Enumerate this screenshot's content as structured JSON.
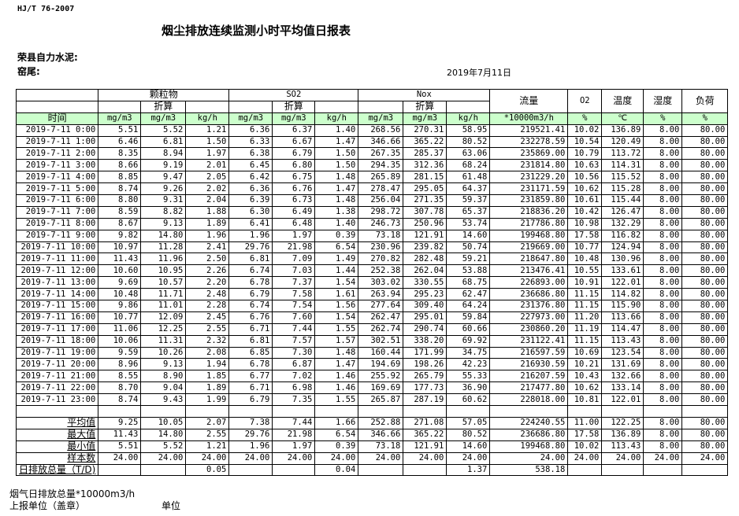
{
  "standard": "HJ/T  76-2007",
  "title": "烟尘排放连续监测小时平均值日报表",
  "company": "荣县自力水泥:",
  "kiln": "窑尾:",
  "date": "2019年7月11日",
  "header": {
    "groups": [
      "颗粒物",
      "SO2",
      "Nox",
      "流量",
      "O2",
      "温度",
      "湿度",
      "负荷"
    ],
    "converted": "折算",
    "time": "时间",
    "units": [
      "mg/m3",
      "mg/m3",
      "kg/h",
      "mg/m3",
      "mg/m3",
      "kg/h",
      "mg/m3",
      "mg/m3",
      "kg/h",
      "*10000m3/h",
      "%",
      "℃",
      "%",
      "%"
    ]
  },
  "header_bg": "#ccffcc",
  "rows": [
    [
      "2019-7-11 0:00",
      "5.51",
      "5.52",
      "1.21",
      "6.36",
      "6.37",
      "1.40",
      "268.56",
      "270.31",
      "58.95",
      "219521.41",
      "10.02",
      "136.89",
      "8.00",
      "80.00"
    ],
    [
      "2019-7-11 1:00",
      "6.46",
      "6.81",
      "1.50",
      "6.33",
      "6.67",
      "1.47",
      "346.66",
      "365.22",
      "80.52",
      "232278.59",
      "10.54",
      "120.49",
      "8.00",
      "80.00"
    ],
    [
      "2019-7-11 2:00",
      "8.35",
      "8.94",
      "1.97",
      "6.38",
      "6.79",
      "1.50",
      "267.35",
      "285.37",
      "63.06",
      "235869.00",
      "10.79",
      "113.72",
      "8.00",
      "80.00"
    ],
    [
      "2019-7-11 3:00",
      "8.66",
      "9.19",
      "2.01",
      "6.45",
      "6.80",
      "1.50",
      "294.35",
      "312.36",
      "68.24",
      "231814.80",
      "10.63",
      "114.31",
      "8.00",
      "80.00"
    ],
    [
      "2019-7-11 4:00",
      "8.85",
      "9.47",
      "2.05",
      "6.42",
      "6.75",
      "1.48",
      "265.89",
      "281.15",
      "61.48",
      "231229.20",
      "10.56",
      "115.52",
      "8.00",
      "80.00"
    ],
    [
      "2019-7-11 5:00",
      "8.74",
      "9.26",
      "2.02",
      "6.36",
      "6.76",
      "1.47",
      "278.47",
      "295.05",
      "64.37",
      "231171.59",
      "10.62",
      "115.28",
      "8.00",
      "80.00"
    ],
    [
      "2019-7-11 6:00",
      "8.80",
      "9.31",
      "2.04",
      "6.39",
      "6.73",
      "1.48",
      "256.04",
      "271.35",
      "59.37",
      "231859.80",
      "10.61",
      "115.44",
      "8.00",
      "80.00"
    ],
    [
      "2019-7-11 7:00",
      "8.59",
      "8.82",
      "1.88",
      "6.30",
      "6.49",
      "1.38",
      "298.72",
      "307.78",
      "65.37",
      "218836.20",
      "10.42",
      "126.47",
      "8.00",
      "80.00"
    ],
    [
      "2019-7-11 8:00",
      "8.67",
      "9.13",
      "1.89",
      "6.41",
      "6.48",
      "1.40",
      "246.73",
      "250.96",
      "53.74",
      "217786.80",
      "10.98",
      "132.29",
      "8.00",
      "80.00"
    ],
    [
      "2019-7-11 9:00",
      "9.82",
      "14.80",
      "1.96",
      "1.96",
      "1.97",
      "0.39",
      "73.18",
      "121.91",
      "14.60",
      "199468.80",
      "17.58",
      "116.82",
      "8.00",
      "80.00"
    ],
    [
      "2019-7-11 10:00",
      "10.97",
      "11.28",
      "2.41",
      "29.76",
      "21.98",
      "6.54",
      "230.96",
      "239.82",
      "50.74",
      "219669.00",
      "10.77",
      "124.94",
      "8.00",
      "80.00"
    ],
    [
      "2019-7-11 11:00",
      "11.43",
      "11.96",
      "2.50",
      "6.81",
      "7.09",
      "1.49",
      "270.82",
      "282.48",
      "59.21",
      "218647.80",
      "10.48",
      "130.96",
      "8.00",
      "80.00"
    ],
    [
      "2019-7-11 12:00",
      "10.60",
      "10.95",
      "2.26",
      "6.74",
      "7.03",
      "1.44",
      "252.38",
      "262.04",
      "53.88",
      "213476.41",
      "10.55",
      "133.61",
      "8.00",
      "80.00"
    ],
    [
      "2019-7-11 13:00",
      "9.69",
      "10.57",
      "2.20",
      "6.78",
      "7.37",
      "1.54",
      "303.02",
      "330.55",
      "68.75",
      "226893.00",
      "10.91",
      "122.01",
      "8.00",
      "80.00"
    ],
    [
      "2019-7-11 14:00",
      "10.48",
      "11.71",
      "2.48",
      "6.79",
      "7.58",
      "1.61",
      "263.94",
      "295.23",
      "62.47",
      "236686.80",
      "11.15",
      "114.82",
      "8.00",
      "80.00"
    ],
    [
      "2019-7-11 15:00",
      "9.86",
      "11.01",
      "2.28",
      "6.74",
      "7.54",
      "1.56",
      "277.64",
      "309.40",
      "64.24",
      "231376.80",
      "11.15",
      "115.90",
      "8.00",
      "80.00"
    ],
    [
      "2019-7-11 16:00",
      "10.77",
      "12.09",
      "2.45",
      "6.76",
      "7.60",
      "1.54",
      "262.47",
      "295.01",
      "59.84",
      "227973.00",
      "11.20",
      "113.66",
      "8.00",
      "80.00"
    ],
    [
      "2019-7-11 17:00",
      "11.06",
      "12.25",
      "2.55",
      "6.71",
      "7.44",
      "1.55",
      "262.74",
      "290.74",
      "60.66",
      "230860.20",
      "11.19",
      "114.47",
      "8.00",
      "80.00"
    ],
    [
      "2019-7-11 18:00",
      "10.06",
      "11.31",
      "2.32",
      "6.81",
      "7.57",
      "1.57",
      "302.51",
      "338.20",
      "69.92",
      "231122.41",
      "11.15",
      "113.43",
      "8.00",
      "80.00"
    ],
    [
      "2019-7-11 19:00",
      "9.59",
      "10.26",
      "2.08",
      "6.85",
      "7.30",
      "1.48",
      "160.44",
      "171.99",
      "34.75",
      "216597.59",
      "10.69",
      "123.54",
      "8.00",
      "80.00"
    ],
    [
      "2019-7-11 20:00",
      "8.96",
      "9.13",
      "1.94",
      "6.78",
      "6.87",
      "1.47",
      "194.69",
      "198.26",
      "42.23",
      "216930.59",
      "10.21",
      "131.69",
      "8.00",
      "80.00"
    ],
    [
      "2019-7-11 21:00",
      "8.55",
      "8.90",
      "1.85",
      "6.77",
      "7.02",
      "1.46",
      "255.92",
      "265.79",
      "55.33",
      "216207.59",
      "10.43",
      "132.66",
      "8.00",
      "80.00"
    ],
    [
      "2019-7-11 22:00",
      "8.70",
      "9.04",
      "1.89",
      "6.71",
      "6.98",
      "1.46",
      "169.69",
      "177.73",
      "36.90",
      "217477.80",
      "10.62",
      "133.14",
      "8.00",
      "80.00"
    ],
    [
      "2019-7-11 23:00",
      "8.74",
      "9.43",
      "1.99",
      "6.79",
      "7.35",
      "1.55",
      "265.87",
      "287.19",
      "60.62",
      "228018.00",
      "10.81",
      "122.01",
      "8.00",
      "80.00"
    ]
  ],
  "stats": [
    [
      "平均值",
      "9.25",
      "10.05",
      "2.07",
      "7.38",
      "7.44",
      "1.66",
      "252.88",
      "271.08",
      "57.05",
      "224240.55",
      "11.00",
      "122.25",
      "8.00",
      "80.00"
    ],
    [
      "最大值",
      "11.43",
      "14.80",
      "2.55",
      "29.76",
      "21.98",
      "6.54",
      "346.66",
      "365.22",
      "80.52",
      "236686.80",
      "17.58",
      "136.89",
      "8.00",
      "80.00"
    ],
    [
      "最小值",
      "5.51",
      "5.52",
      "1.21",
      "1.96",
      "1.97",
      "0.39",
      "73.18",
      "121.91",
      "14.60",
      "199468.80",
      "10.02",
      "113.43",
      "8.00",
      "80.00"
    ],
    [
      "样本数",
      "24.00",
      "24.00",
      "24.00",
      "24.00",
      "24.00",
      "24.00",
      "24.00",
      "24.00",
      "24.00",
      "24.00",
      "24.00",
      "24.00",
      "24.00",
      "24.00"
    ]
  ],
  "total": [
    "日排放总量（T/D)",
    "",
    "",
    "0.05",
    "",
    "",
    "0.04",
    "",
    "",
    "1.37",
    "538.18",
    "",
    "",
    "",
    ""
  ],
  "footer": {
    "line1": "烟气日排放总量*10000m3/h",
    "line2": "上报单位（盖章）",
    "line3": "单位"
  }
}
